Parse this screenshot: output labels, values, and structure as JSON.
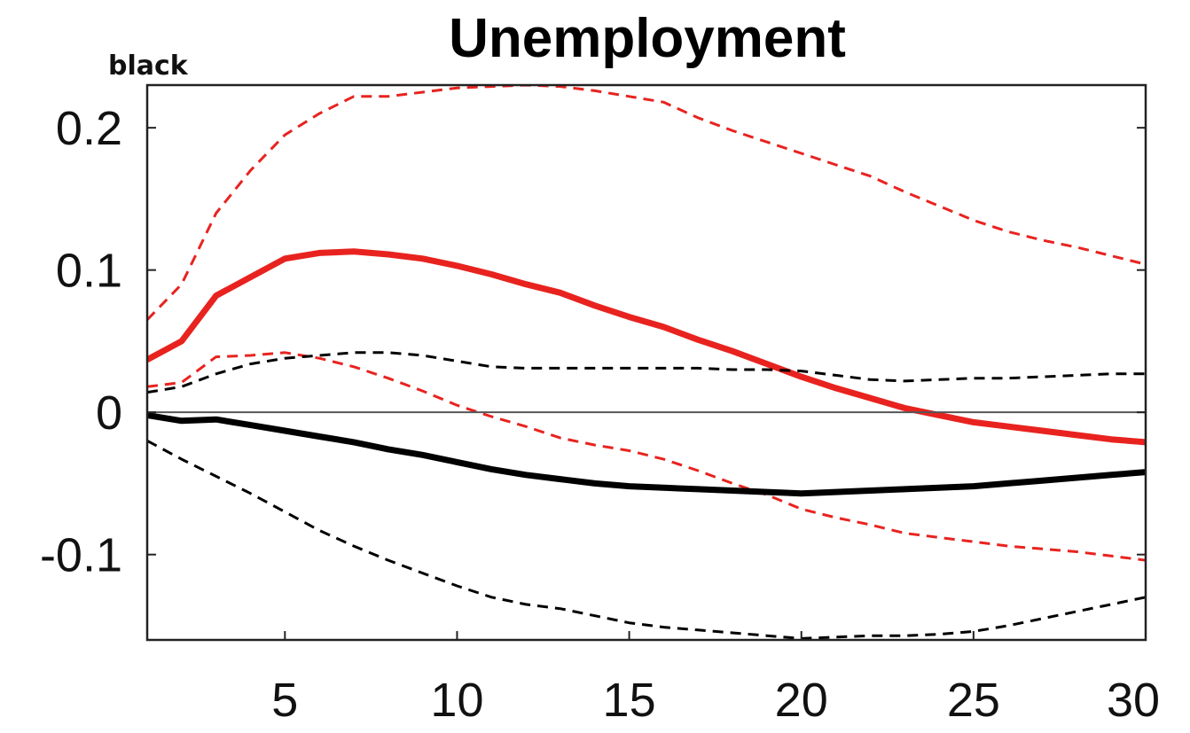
{
  "chart_data": {
    "type": "line",
    "title": "Unemployment",
    "annotation": "black",
    "xlabel": "",
    "ylabel": "",
    "xlim": [
      1,
      30
    ],
    "ylim": [
      -0.16,
      0.23
    ],
    "xticks": [
      5,
      10,
      15,
      20,
      25,
      30
    ],
    "yticks": [
      -0.1,
      0,
      0.1,
      0.2
    ],
    "ytick_labels": [
      "-0.1",
      "0",
      "0.1",
      "0.2"
    ],
    "zero_line": true,
    "grid": false,
    "x": [
      1,
      2,
      3,
      4,
      5,
      6,
      7,
      8,
      9,
      10,
      11,
      12,
      13,
      14,
      15,
      16,
      17,
      18,
      19,
      20,
      21,
      22,
      23,
      24,
      25,
      26,
      27,
      28,
      29,
      30
    ],
    "series": [
      {
        "color": "#e8231f",
        "style": "solid",
        "values": [
          0.037,
          0.05,
          0.082,
          0.095,
          0.108,
          0.112,
          0.113,
          0.111,
          0.108,
          0.103,
          0.097,
          0.09,
          0.084,
          0.075,
          0.067,
          0.06,
          0.051,
          0.043,
          0.034,
          0.025,
          0.017,
          0.01,
          0.003,
          -0.002,
          -0.007,
          -0.01,
          -0.013,
          -0.016,
          -0.019,
          -0.021
        ]
      },
      {
        "color": "#e8231f",
        "style": "dashed",
        "values": [
          0.065,
          0.09,
          0.14,
          0.17,
          0.195,
          0.21,
          0.222,
          0.222,
          0.225,
          0.228,
          0.229,
          0.23,
          0.229,
          0.226,
          0.222,
          0.218,
          0.207,
          0.198,
          0.19,
          0.182,
          0.174,
          0.166,
          0.155,
          0.145,
          0.135,
          0.127,
          0.121,
          0.116,
          0.11,
          0.104
        ]
      },
      {
        "color": "#e8231f",
        "style": "dashed",
        "values": [
          0.018,
          0.021,
          0.039,
          0.04,
          0.042,
          0.038,
          0.032,
          0.024,
          0.015,
          0.005,
          -0.003,
          -0.01,
          -0.018,
          -0.023,
          -0.027,
          -0.033,
          -0.041,
          -0.05,
          -0.058,
          -0.068,
          -0.074,
          -0.079,
          -0.085,
          -0.088,
          -0.091,
          -0.094,
          -0.096,
          -0.098,
          -0.101,
          -0.104
        ]
      },
      {
        "color": "#000000",
        "style": "solid",
        "values": [
          -0.002,
          -0.006,
          -0.005,
          -0.009,
          -0.013,
          -0.017,
          -0.021,
          -0.026,
          -0.03,
          -0.035,
          -0.04,
          -0.044,
          -0.047,
          -0.05,
          -0.052,
          -0.053,
          -0.054,
          -0.055,
          -0.056,
          -0.057,
          -0.056,
          -0.055,
          -0.054,
          -0.053,
          -0.052,
          -0.05,
          -0.048,
          -0.046,
          -0.044,
          -0.042
        ]
      },
      {
        "color": "#000000",
        "style": "dashed",
        "values": [
          0.014,
          0.018,
          0.027,
          0.034,
          0.038,
          0.04,
          0.042,
          0.042,
          0.04,
          0.036,
          0.032,
          0.031,
          0.031,
          0.031,
          0.031,
          0.031,
          0.031,
          0.03,
          0.03,
          0.029,
          0.026,
          0.023,
          0.022,
          0.023,
          0.024,
          0.024,
          0.025,
          0.026,
          0.027,
          0.027
        ]
      },
      {
        "color": "#000000",
        "style": "dashed",
        "values": [
          -0.02,
          -0.033,
          -0.045,
          -0.057,
          -0.07,
          -0.083,
          -0.094,
          -0.104,
          -0.113,
          -0.122,
          -0.13,
          -0.135,
          -0.138,
          -0.143,
          -0.148,
          -0.151,
          -0.153,
          -0.155,
          -0.157,
          -0.159,
          -0.158,
          -0.157,
          -0.157,
          -0.156,
          -0.154,
          -0.15,
          -0.145,
          -0.14,
          -0.135,
          -0.13
        ]
      }
    ]
  }
}
